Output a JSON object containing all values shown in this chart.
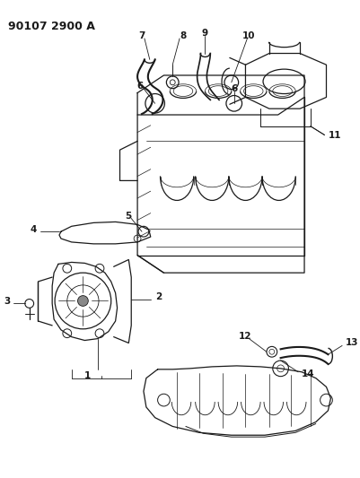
{
  "title": "90107 2900 A",
  "bg_color": "#ffffff",
  "line_color": "#1a1a1a",
  "fig_width": 4.02,
  "fig_height": 5.33,
  "dpi": 100
}
